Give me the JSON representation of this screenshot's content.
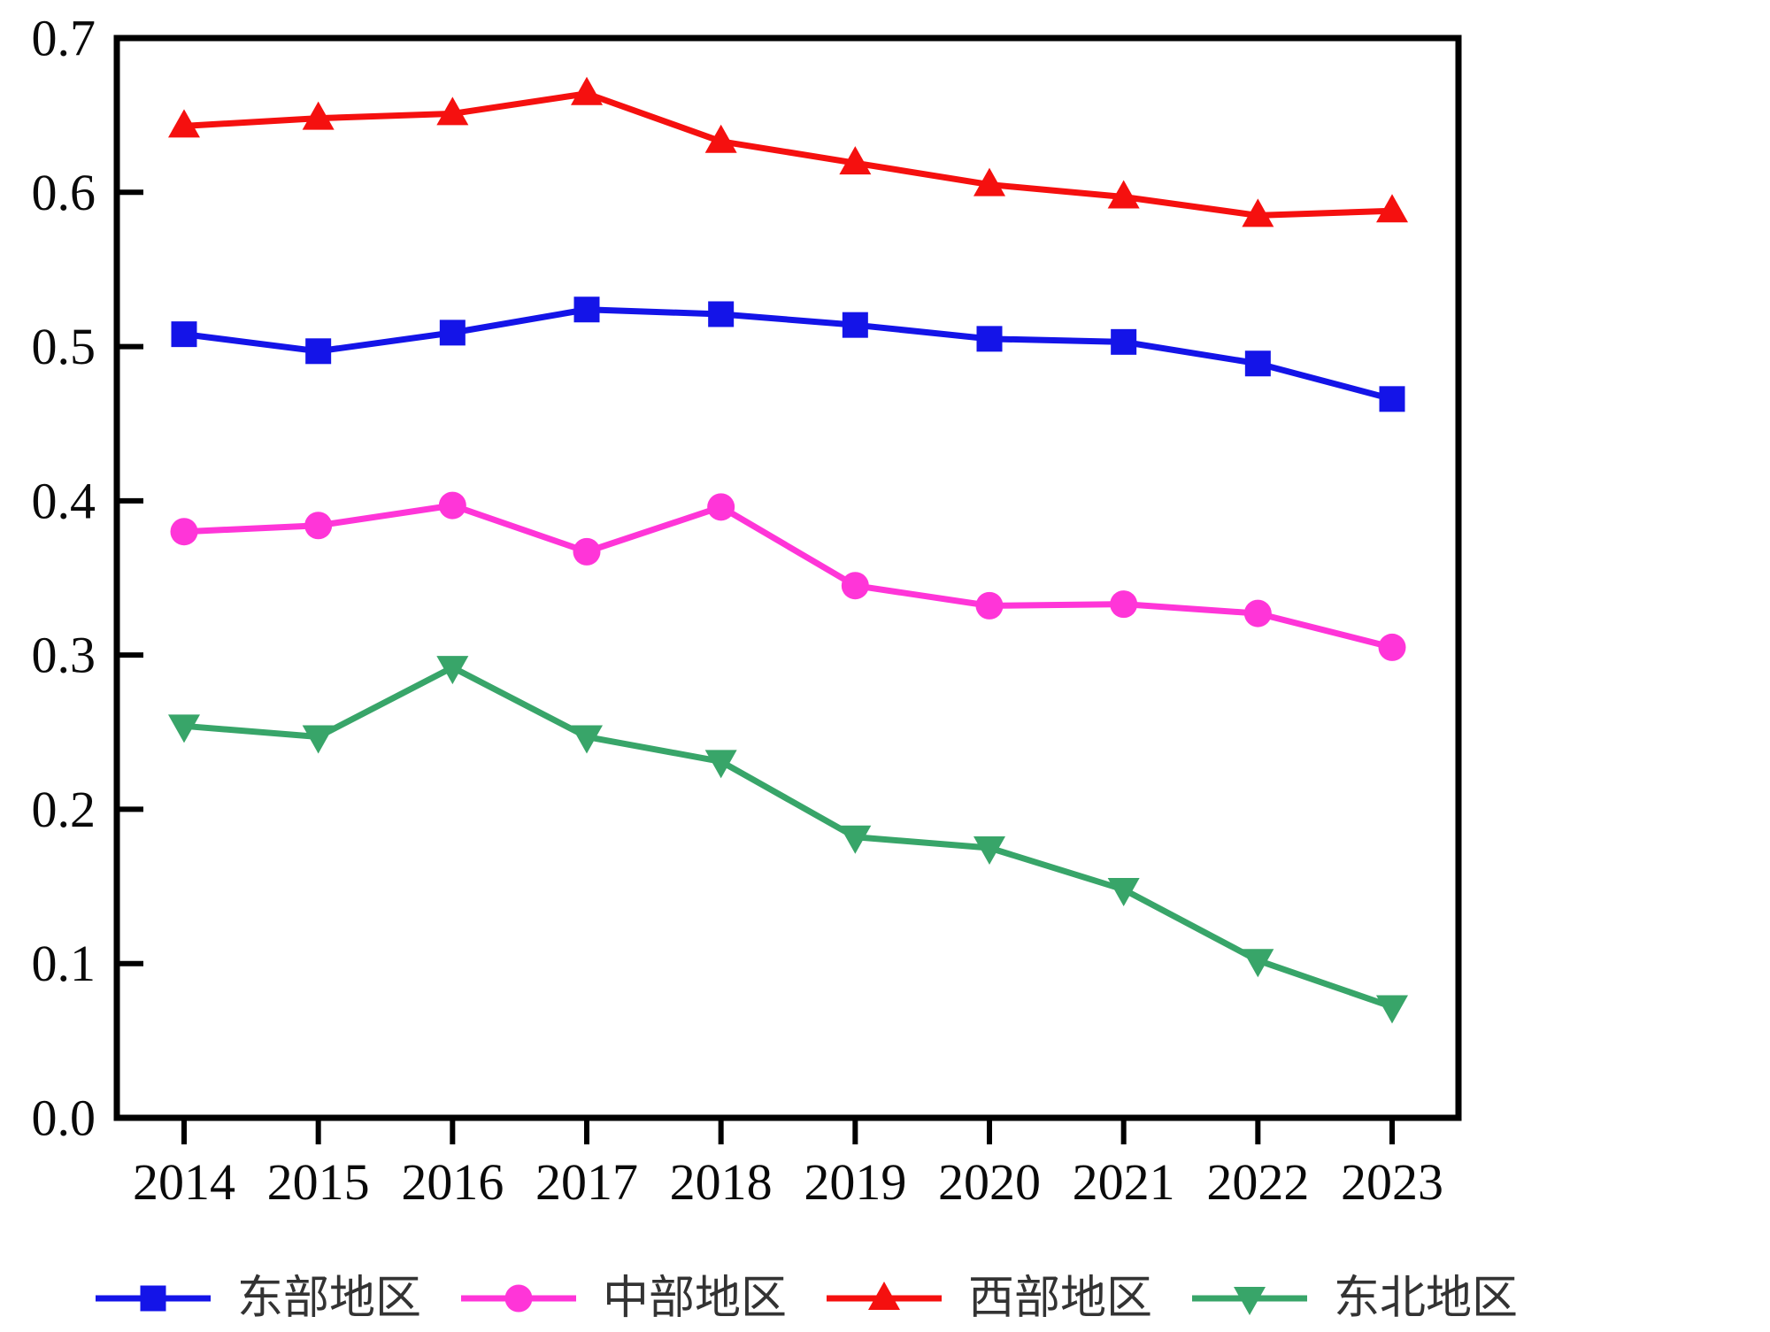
{
  "chart_data": {
    "type": "line",
    "title": "",
    "xlabel": "",
    "ylabel": "",
    "categories": [
      "2014",
      "2015",
      "2016",
      "2017",
      "2018",
      "2019",
      "2020",
      "2021",
      "2022",
      "2023"
    ],
    "series": [
      {
        "key": "eastern",
        "name": "东部地区",
        "color": "#1414e8",
        "marker": "square",
        "values": [
          0.508,
          0.497,
          0.509,
          0.524,
          0.521,
          0.514,
          0.505,
          0.503,
          0.489,
          0.466
        ]
      },
      {
        "key": "central",
        "name": "中部地区",
        "color": "#ff35d8",
        "marker": "circle",
        "values": [
          0.38,
          0.384,
          0.397,
          0.367,
          0.396,
          0.345,
          0.332,
          0.333,
          0.327,
          0.305
        ]
      },
      {
        "key": "western",
        "name": "西部地区",
        "color": "#f5100f",
        "marker": "triangle-up",
        "values": [
          0.643,
          0.648,
          0.651,
          0.664,
          0.633,
          0.619,
          0.605,
          0.597,
          0.585,
          0.588
        ]
      },
      {
        "key": "northeast",
        "name": "东北地区",
        "color": "#38a569",
        "marker": "triangle-down",
        "values": [
          0.254,
          0.247,
          0.292,
          0.247,
          0.231,
          0.182,
          0.175,
          0.148,
          0.102,
          0.072
        ]
      }
    ],
    "ylim": [
      0.0,
      0.7
    ],
    "yticks": [
      "0.0",
      "0.1",
      "0.2",
      "0.3",
      "0.4",
      "0.5",
      "0.6",
      "0.7"
    ],
    "grid": false,
    "legend_position": "bottom",
    "legend_order": [
      "eastern",
      "central",
      "western",
      "northeast"
    ],
    "axis_color": "#000000",
    "tick_label_color": "#0a0a0a",
    "legend_text_color": "#333333"
  }
}
